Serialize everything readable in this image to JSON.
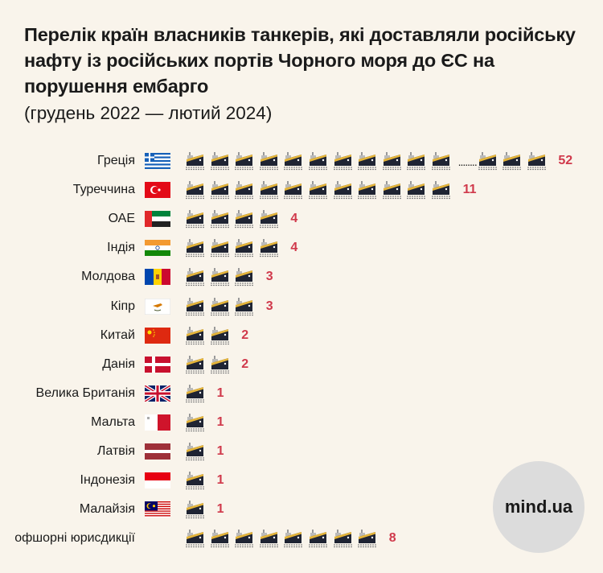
{
  "title": "Перелік країн власників танкерів, які доставляли російську нафту із російських портів Чорного моря до ЄС на порушення ембарго",
  "subtitle": "(грудень 2022 — лютий 2024)",
  "logo": "mind.ua",
  "colors": {
    "background": "#f9f4eb",
    "value": "#d0394b",
    "hull": "#1f2433",
    "stripe": "#e5b53a"
  },
  "chart_data": {
    "type": "pictogram",
    "unit_icon": "tanker-ship-icon",
    "categories": [
      "Греція",
      "Туреччина",
      "ОАЕ",
      "Індія",
      "Молдова",
      "Кіпр",
      "Китай",
      "Данія",
      "Велика Британія",
      "Мальта",
      "Латвія",
      "Індонезія",
      "Малайзія",
      "офшорні юрисдикції"
    ],
    "values": [
      52,
      11,
      4,
      4,
      3,
      3,
      2,
      2,
      1,
      1,
      1,
      1,
      1,
      8
    ],
    "flags": [
      "greece",
      "turkey",
      "uae",
      "india",
      "moldova",
      "cyprus",
      "china",
      "denmark",
      "uk",
      "malta",
      "latvia",
      "indonesia",
      "malaysia",
      ""
    ],
    "truncated": {
      "category": "Греція",
      "icons_before": 11,
      "icons_after": 3,
      "ellipsis": "........"
    }
  }
}
